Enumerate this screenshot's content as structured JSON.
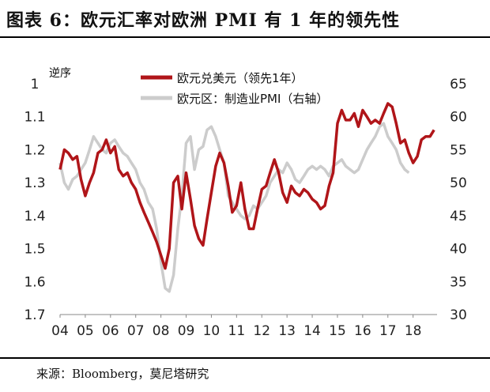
{
  "header": {
    "title": "图表 6：欧元汇率对欧洲 PMI 有 1 年的领先性"
  },
  "footer": {
    "source": "来源：Bloomberg，莫尼塔研究"
  },
  "chart_data": {
    "type": "line",
    "title": "",
    "x_ticks": [
      "04",
      "05",
      "06",
      "07",
      "08",
      "09",
      "10",
      "11",
      "12",
      "13",
      "14",
      "15",
      "16",
      "17",
      "18"
    ],
    "left_axis": {
      "label": "逆序",
      "ticks": [
        "1",
        "1.1",
        "1.2",
        "1.3",
        "1.4",
        "1.5",
        "1.6",
        "1.7"
      ],
      "range": [
        1.0,
        1.7
      ],
      "reversed": true
    },
    "right_axis": {
      "label": "",
      "ticks": [
        "65",
        "60",
        "55",
        "50",
        "45",
        "40",
        "35",
        "30"
      ],
      "range": [
        30,
        65
      ]
    },
    "legend_position": "top-center",
    "series": [
      {
        "name": "欧元兑美元（领先1年）",
        "axis": "left",
        "color": "#b01519",
        "x": [
          4.0,
          4.17,
          4.33,
          4.5,
          4.67,
          4.83,
          5.0,
          5.17,
          5.33,
          5.5,
          5.67,
          5.83,
          6.0,
          6.17,
          6.33,
          6.5,
          6.67,
          6.83,
          7.0,
          7.17,
          7.33,
          7.5,
          7.67,
          7.83,
          8.0,
          8.17,
          8.33,
          8.5,
          8.67,
          8.83,
          9.0,
          9.17,
          9.33,
          9.5,
          9.67,
          9.83,
          10.0,
          10.17,
          10.33,
          10.5,
          10.67,
          10.83,
          11.0,
          11.17,
          11.33,
          11.5,
          11.67,
          11.83,
          12.0,
          12.17,
          12.33,
          12.5,
          12.67,
          12.83,
          13.0,
          13.17,
          13.33,
          13.5,
          13.67,
          13.83,
          14.0,
          14.17,
          14.33,
          14.5,
          14.67,
          14.83,
          15.0,
          15.17,
          15.33,
          15.5,
          15.67,
          15.83,
          16.0,
          16.17,
          16.33,
          16.5,
          16.67,
          16.83,
          17.0,
          17.17,
          17.33,
          17.5,
          17.67,
          17.83,
          18.0,
          18.17,
          18.33,
          18.5,
          18.67,
          18.83
        ],
        "values": [
          1.26,
          1.2,
          1.21,
          1.23,
          1.22,
          1.29,
          1.34,
          1.3,
          1.27,
          1.21,
          1.2,
          1.17,
          1.21,
          1.19,
          1.26,
          1.28,
          1.27,
          1.3,
          1.32,
          1.36,
          1.39,
          1.42,
          1.45,
          1.48,
          1.52,
          1.56,
          1.5,
          1.3,
          1.28,
          1.38,
          1.27,
          1.35,
          1.43,
          1.47,
          1.49,
          1.41,
          1.33,
          1.25,
          1.21,
          1.24,
          1.31,
          1.39,
          1.37,
          1.3,
          1.38,
          1.44,
          1.44,
          1.38,
          1.32,
          1.31,
          1.27,
          1.23,
          1.27,
          1.33,
          1.36,
          1.31,
          1.33,
          1.34,
          1.32,
          1.33,
          1.35,
          1.36,
          1.38,
          1.37,
          1.31,
          1.27,
          1.12,
          1.08,
          1.11,
          1.11,
          1.09,
          1.13,
          1.08,
          1.1,
          1.12,
          1.11,
          1.12,
          1.09,
          1.06,
          1.07,
          1.12,
          1.18,
          1.17,
          1.21,
          1.24,
          1.22,
          1.17,
          1.16,
          1.16,
          1.14
        ]
      },
      {
        "name": "欧元区：制造业PMI（右轴）",
        "axis": "right",
        "color": "#cccccc",
        "x": [
          4.0,
          4.17,
          4.33,
          4.5,
          4.67,
          4.83,
          5.0,
          5.17,
          5.33,
          5.5,
          5.67,
          5.83,
          6.0,
          6.17,
          6.33,
          6.5,
          6.67,
          6.83,
          7.0,
          7.17,
          7.33,
          7.5,
          7.67,
          7.83,
          8.0,
          8.17,
          8.33,
          8.5,
          8.67,
          8.83,
          9.0,
          9.17,
          9.33,
          9.5,
          9.67,
          9.83,
          10.0,
          10.17,
          10.33,
          10.5,
          10.67,
          10.83,
          11.0,
          11.17,
          11.33,
          11.5,
          11.67,
          11.83,
          12.0,
          12.17,
          12.33,
          12.5,
          12.67,
          12.83,
          13.0,
          13.17,
          13.33,
          13.5,
          13.67,
          13.83,
          14.0,
          14.17,
          14.33,
          14.5,
          14.67,
          14.83,
          15.0,
          15.17,
          15.33,
          15.5,
          15.67,
          15.83,
          16.0,
          16.17,
          16.33,
          16.5,
          16.67,
          16.83,
          17.0,
          17.17,
          17.33,
          17.5,
          17.67,
          17.83
        ],
        "values": [
          53,
          50,
          49,
          50.5,
          51,
          52,
          53,
          55,
          57,
          56,
          55,
          54.5,
          56,
          56.5,
          55.5,
          54.5,
          54,
          53,
          52,
          50,
          49,
          47,
          46,
          43,
          38,
          34,
          33.5,
          36,
          43,
          48,
          56,
          57,
          52,
          55,
          55.5,
          58,
          58.5,
          57,
          55,
          53,
          48,
          47,
          46,
          45,
          44.5,
          45,
          46.5,
          46,
          47,
          48,
          50,
          51,
          52,
          51.5,
          53,
          52,
          50.5,
          50,
          51,
          52,
          52.5,
          52,
          52.5,
          52,
          51,
          52.5,
          53,
          53.5,
          52.5,
          52,
          51.5,
          52,
          53.5,
          55,
          56,
          57,
          58.5,
          59,
          57,
          56,
          55,
          53,
          52,
          51.5
        ]
      }
    ]
  }
}
